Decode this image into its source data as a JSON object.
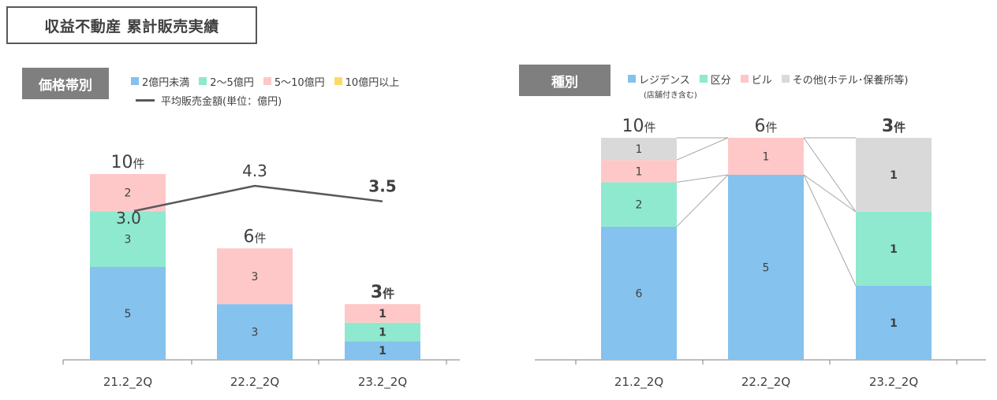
{
  "page_title": "収益不動産 累計販売実績",
  "colors": {
    "blue": "#85c2ee",
    "green": "#8ee9cf",
    "pink": "#ffc8c8",
    "yellow": "#ffd966",
    "gray": "#d9d9d9",
    "line": "#595959",
    "axis": "#7f7f7f",
    "connector": "#a6a6a6"
  },
  "left_chart": {
    "tag": "価格帯別",
    "legend": [
      {
        "label": "2億円未満",
        "color": "#85c2ee"
      },
      {
        "label": "2～5億円",
        "color": "#8ee9cf"
      },
      {
        "label": "5～10億円",
        "color": "#ffc8c8"
      },
      {
        "label": "10億円以上",
        "color": "#ffd966"
      }
    ],
    "line_legend": "平均販売金額(単位：億円)"
  },
  "right_chart": {
    "tag": "種別",
    "legend": [
      {
        "label": "レジデンス",
        "color": "#85c2ee"
      },
      {
        "label": "区分",
        "color": "#8ee9cf"
      },
      {
        "label": "ビル",
        "color": "#ffc8c8"
      },
      {
        "label": "その他(ホテル･保養所等)",
        "color": "#d9d9d9"
      }
    ],
    "legend_note": "(店舗付き含む)"
  },
  "chart_data": [
    {
      "type": "bar",
      "stacked": true,
      "title": "価格帯別",
      "categories": [
        "21.2_2Q",
        "22.2_2Q",
        "23.2_2Q"
      ],
      "series": [
        {
          "name": "2億円未満",
          "values": [
            5,
            3,
            1
          ]
        },
        {
          "name": "2～5億円",
          "values": [
            3,
            0,
            1
          ]
        },
        {
          "name": "5～10億円",
          "values": [
            2,
            3,
            1
          ]
        },
        {
          "name": "10億円以上",
          "values": [
            0,
            0,
            0
          ]
        }
      ],
      "totals": [
        "10",
        "6",
        "3"
      ],
      "total_unit": "件",
      "line_series": {
        "name": "平均販売金額(単位：億円)",
        "values": [
          3.0,
          4.3,
          3.5
        ],
        "labels": [
          "3.0",
          "4.3",
          "3.5"
        ]
      },
      "ylim": [
        0,
        10
      ]
    },
    {
      "type": "bar",
      "stacked": true,
      "normalized": true,
      "title": "種別",
      "categories": [
        "21.2_2Q",
        "22.2_2Q",
        "23.2_2Q"
      ],
      "series": [
        {
          "name": "レジデンス",
          "values": [
            6,
            5,
            1
          ]
        },
        {
          "name": "区分",
          "values": [
            2,
            0,
            1
          ]
        },
        {
          "name": "ビル",
          "values": [
            1,
            1,
            0
          ]
        },
        {
          "name": "その他(ホテル･保養所等)",
          "values": [
            1,
            0,
            1
          ]
        }
      ],
      "totals": [
        "10",
        "6",
        "3"
      ],
      "total_unit": "件"
    }
  ]
}
